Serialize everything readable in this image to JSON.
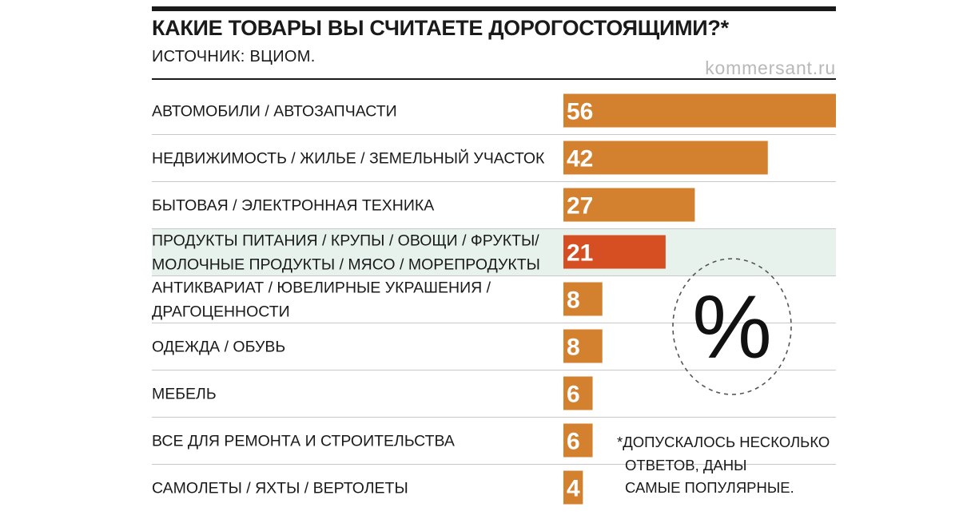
{
  "header": {
    "title": "КАКИЕ ТОВАРЫ ВЫ СЧИТАЕТЕ ДОРОГОСТОЯЩИМИ?*",
    "source": "ИСТОЧНИК: ВЦИОМ.",
    "credit": "kommersant.ru"
  },
  "percent_badge": "%",
  "footnote": {
    "line1": "*ДОПУСКАЛОСЬ НЕСКОЛЬКО",
    "line2": "ОТВЕТОВ, ДАНЫ",
    "line3": "САМЫЕ ПОПУЛЯРНЫЕ."
  },
  "colors": {
    "bar": "#d3802f",
    "bar_highlight": "#d54f23",
    "row_highlight": "#e8f2ec",
    "separator": "#c8c8c8",
    "credit": "#b8b8b8"
  },
  "chart_data": {
    "type": "bar",
    "orientation": "horizontal",
    "unit": "%",
    "categories": [
      [
        "АВТОМОБИЛИ / АВТОЗАПЧАСТИ"
      ],
      [
        "НЕДВИЖИМОСТЬ / ЖИЛЬЕ / ЗЕМЕЛЬНЫЙ УЧАСТОК"
      ],
      [
        "БЫТОВАЯ / ЭЛЕКТРОННАЯ ТЕХНИКА"
      ],
      [
        "ПРОДУКТЫ ПИТАНИЯ / КРУПЫ / ОВОЩИ / ФРУКТЫ/",
        "МОЛОЧНЫЕ ПРОДУКТЫ / МЯСО / МОРЕПРОДУКТЫ"
      ],
      [
        "АНТИКВАРИАТ / ЮВЕЛИРНЫЕ УКРАШЕНИЯ /",
        "ДРАГОЦЕННОСТИ"
      ],
      [
        "ОДЕЖДА / ОБУВЬ"
      ],
      [
        "МЕБЕЛЬ"
      ],
      [
        "ВСЕ ДЛЯ РЕМОНТА И СТРОИТЕЛЬСТВА"
      ],
      [
        "САМОЛЕТЫ / ЯХТЫ / ВЕРТОЛЕТЫ"
      ]
    ],
    "values": [
      56,
      42,
      27,
      21,
      8,
      8,
      6,
      6,
      4
    ],
    "highlighted_index": 3,
    "xlim": [
      0,
      56
    ],
    "value_labels": "inside bar start",
    "grid": false,
    "legend": "none"
  }
}
